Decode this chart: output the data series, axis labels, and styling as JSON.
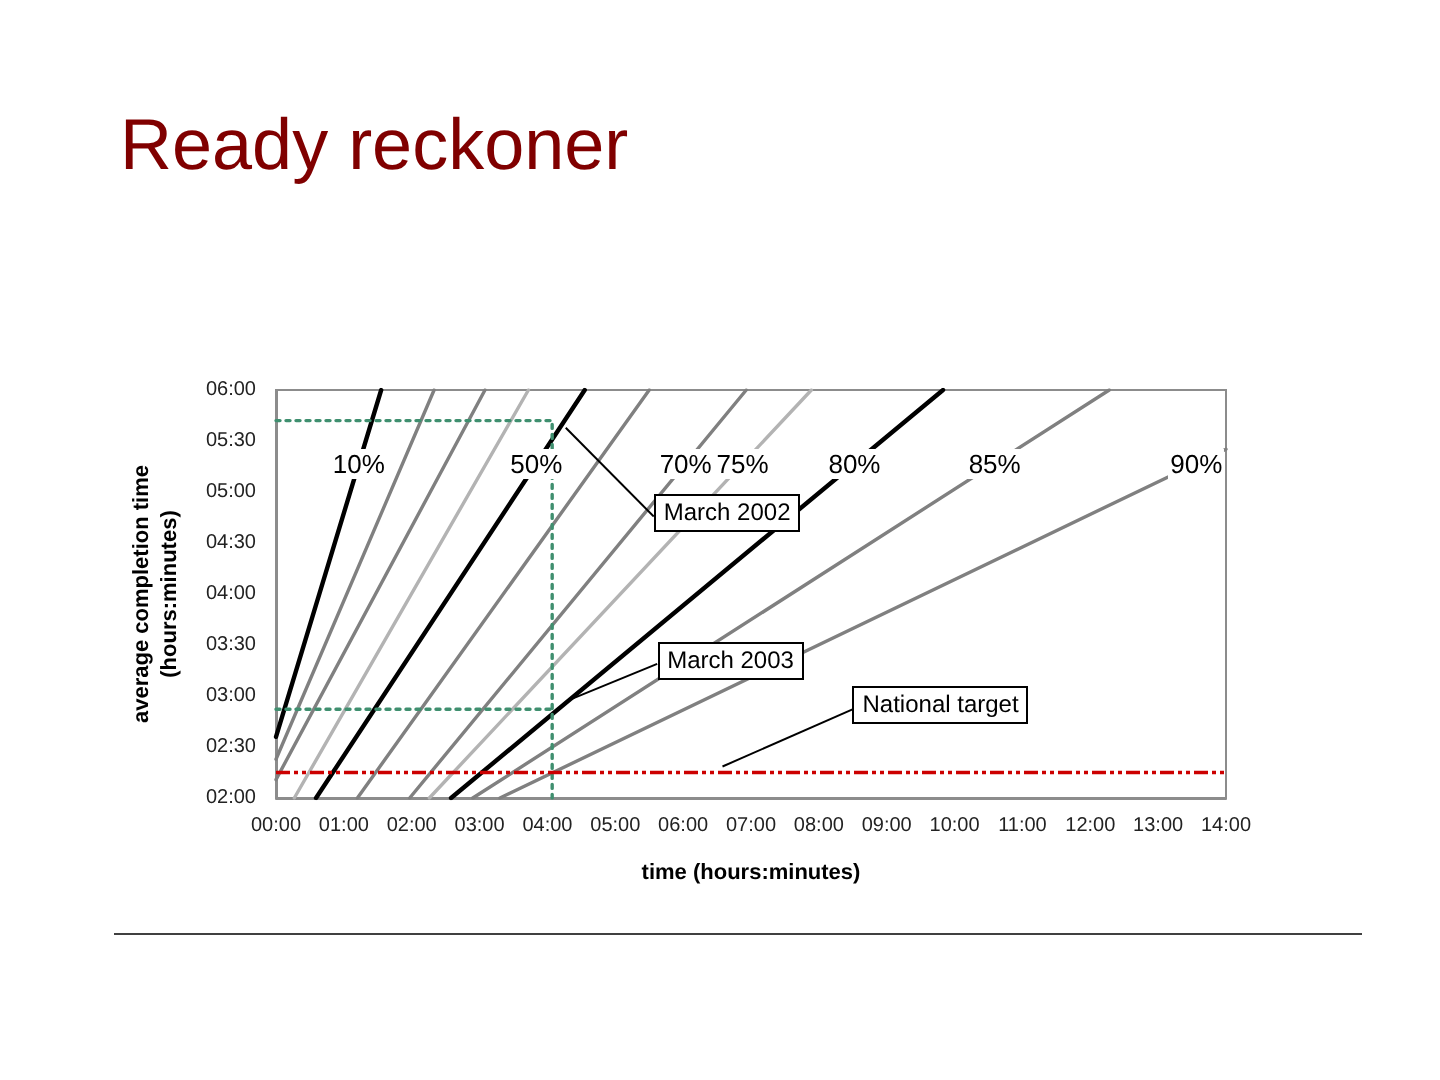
{
  "chart_data": {
    "type": "line",
    "title": "Ready reckoner",
    "xlabel": "time (hours:minutes)",
    "ylabel": "average completion time\n(hours:minutes)",
    "xlim": [
      0,
      14
    ],
    "xticks": [
      {
        "value": 0,
        "label": "00:00"
      },
      {
        "value": 1,
        "label": "01:00"
      },
      {
        "value": 2,
        "label": "02:00"
      },
      {
        "value": 3,
        "label": "03:00"
      },
      {
        "value": 4,
        "label": "04:00"
      },
      {
        "value": 5,
        "label": "05:00"
      },
      {
        "value": 6,
        "label": "06:00"
      },
      {
        "value": 7,
        "label": "07:00"
      },
      {
        "value": 8,
        "label": "08:00"
      },
      {
        "value": 9,
        "label": "09:00"
      },
      {
        "value": 10,
        "label": "10:00"
      },
      {
        "value": 11,
        "label": "11:00"
      },
      {
        "value": 12,
        "label": "12:00"
      },
      {
        "value": 13,
        "label": "13:00"
      },
      {
        "value": 14,
        "label": "14:00"
      }
    ],
    "ylim": [
      2,
      6
    ],
    "yticks": [
      {
        "value": 2,
        "label": "02:00"
      },
      {
        "value": 2.5,
        "label": "02:30"
      },
      {
        "value": 3,
        "label": "03:00"
      },
      {
        "value": 3.5,
        "label": "03:30"
      },
      {
        "value": 4,
        "label": "04:00"
      },
      {
        "value": 4.5,
        "label": "04:30"
      },
      {
        "value": 5,
        "label": "05:00"
      },
      {
        "value": 5.5,
        "label": "05:30"
      },
      {
        "value": 6,
        "label": "06:00"
      }
    ],
    "marker": "none",
    "line_style": "solid",
    "series": [
      {
        "name": "10%",
        "color": "#000000",
        "x": [
          0,
          1.55
        ],
        "values": [
          2.6,
          6
        ]
      },
      {
        "color": "#808080",
        "x": [
          0,
          2.33
        ],
        "values": [
          2.38,
          6
        ]
      },
      {
        "color": "#808080",
        "x": [
          0,
          3.08
        ],
        "values": [
          2.18,
          6
        ]
      },
      {
        "color": "#b3b3b3",
        "x": [
          0.27,
          3.72
        ],
        "values": [
          2,
          6
        ]
      },
      {
        "name": "50%",
        "color": "#000000",
        "x": [
          0.59,
          4.55
        ],
        "values": [
          2,
          6
        ]
      },
      {
        "color": "#808080",
        "x": [
          1.2,
          5.5
        ],
        "values": [
          2,
          6
        ]
      },
      {
        "name": "70%",
        "color": "#808080",
        "x": [
          1.97,
          6.93
        ],
        "values": [
          2,
          6
        ]
      },
      {
        "name": "75%",
        "color": "#b3b3b3",
        "x": [
          2.26,
          7.89
        ],
        "values": [
          2,
          6
        ]
      },
      {
        "name": "80%",
        "color": "#000000",
        "x": [
          2.58,
          9.83
        ],
        "values": [
          2,
          6
        ]
      },
      {
        "name": "85%",
        "color": "#808080",
        "x": [
          2.9,
          12.28
        ],
        "values": [
          2,
          6
        ]
      },
      {
        "name": "90%",
        "color": "#808080",
        "x": [
          3.3,
          14
        ],
        "values": [
          2,
          5.42
        ]
      },
      {
        "color": "#3f8f6f",
        "line_style": "dotted",
        "x": [
          0,
          4.07,
          4.07
        ],
        "values": [
          5.7,
          5.7,
          2
        ]
      },
      {
        "color": "#3f8f6f",
        "line_style": "dotted",
        "x": [
          0,
          4.07
        ],
        "values": [
          2.87,
          2.87
        ]
      }
    ],
    "ref_lines": [
      {
        "axis": "y",
        "value": 2.25,
        "label": "National target",
        "color": "#cc0000",
        "line_style": "dashed"
      }
    ],
    "annotations": [
      {
        "text": "March 2002",
        "x": 4.27,
        "y": 5.63
      },
      {
        "text": "March 2003",
        "x": 4.35,
        "y": 2.97
      }
    ]
  }
}
